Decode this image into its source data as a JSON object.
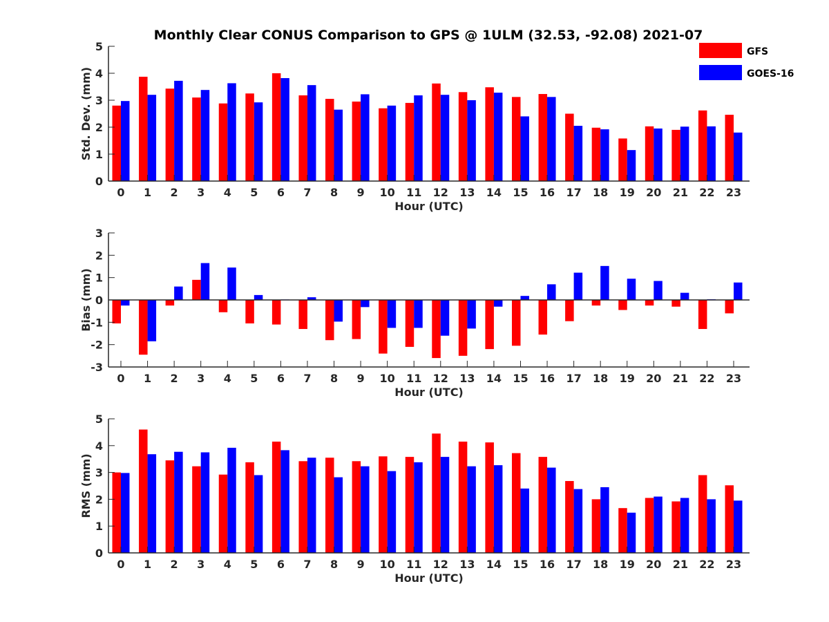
{
  "title": "Monthly Clear CONUS Comparison to GPS @ 1ULM (32.53, -92.08) 2021-07",
  "legend": [
    {
      "label": "GFS",
      "color": "#ff0000"
    },
    {
      "label": "GOES-16",
      "color": "#0000ff"
    }
  ],
  "chart_data": [
    {
      "type": "bar",
      "xlabel": "Hour (UTC)",
      "ylabel": "Std. Dev. (mm)",
      "ylim": [
        0,
        5
      ],
      "yticks": [
        0,
        1,
        2,
        3,
        4,
        5
      ],
      "categories": [
        "0",
        "1",
        "2",
        "3",
        "4",
        "5",
        "6",
        "7",
        "8",
        "9",
        "10",
        "11",
        "12",
        "13",
        "14",
        "15",
        "16",
        "17",
        "18",
        "19",
        "20",
        "21",
        "22",
        "23"
      ],
      "series": [
        {
          "name": "GFS",
          "color": "#ff0000",
          "values": [
            2.8,
            3.87,
            3.43,
            3.1,
            2.88,
            3.25,
            4.0,
            3.18,
            3.05,
            2.95,
            2.7,
            2.9,
            3.62,
            3.3,
            3.48,
            3.12,
            3.23,
            2.5,
            1.98,
            1.58,
            2.03,
            1.9,
            2.62,
            2.46
          ]
        },
        {
          "name": "GOES-16",
          "color": "#0000ff",
          "values": [
            2.97,
            3.2,
            3.72,
            3.38,
            3.63,
            2.92,
            3.82,
            3.56,
            2.65,
            3.22,
            2.8,
            3.18,
            3.2,
            3.0,
            3.28,
            2.4,
            3.12,
            2.05,
            1.92,
            1.15,
            1.95,
            2.02,
            2.03,
            1.8
          ]
        }
      ]
    },
    {
      "type": "bar",
      "xlabel": "Hour (UTC)",
      "ylabel": "Bias (mm)",
      "ylim": [
        -3,
        3
      ],
      "yticks": [
        -3,
        -2,
        -1,
        0,
        1,
        2,
        3
      ],
      "zero_line": true,
      "categories": [
        "0",
        "1",
        "2",
        "3",
        "4",
        "5",
        "6",
        "7",
        "8",
        "9",
        "10",
        "11",
        "12",
        "13",
        "14",
        "15",
        "16",
        "17",
        "18",
        "19",
        "20",
        "21",
        "22",
        "23"
      ],
      "series": [
        {
          "name": "GFS",
          "color": "#ff0000",
          "values": [
            -1.05,
            -2.45,
            -0.25,
            0.9,
            -0.55,
            -1.05,
            -1.1,
            -1.3,
            -1.8,
            -1.75,
            -2.4,
            -2.1,
            -2.6,
            -2.5,
            -2.2,
            -2.05,
            -1.55,
            -0.95,
            -0.25,
            -0.45,
            -0.25,
            -0.3,
            -1.3,
            -0.6
          ]
        },
        {
          "name": "GOES-16",
          "color": "#0000ff",
          "values": [
            -0.25,
            -1.85,
            0.6,
            1.65,
            1.45,
            0.22,
            0.02,
            0.12,
            -0.97,
            -0.32,
            -1.25,
            -1.25,
            -1.6,
            -1.28,
            -0.3,
            0.18,
            0.7,
            1.22,
            1.52,
            0.95,
            0.85,
            0.32,
            0.03,
            0.78
          ]
        }
      ]
    },
    {
      "type": "bar",
      "xlabel": "Hour (UTC)",
      "ylabel": "RMS (mm)",
      "ylim": [
        0,
        5
      ],
      "yticks": [
        0,
        1,
        2,
        3,
        4,
        5
      ],
      "categories": [
        "0",
        "1",
        "2",
        "3",
        "4",
        "5",
        "6",
        "7",
        "8",
        "9",
        "10",
        "11",
        "12",
        "13",
        "14",
        "15",
        "16",
        "17",
        "18",
        "19",
        "20",
        "21",
        "22",
        "23"
      ],
      "series": [
        {
          "name": "GFS",
          "color": "#ff0000",
          "values": [
            3.0,
            4.6,
            3.45,
            3.23,
            2.92,
            3.38,
            4.15,
            3.42,
            3.55,
            3.42,
            3.6,
            3.58,
            4.45,
            4.15,
            4.12,
            3.72,
            3.58,
            2.68,
            2.0,
            1.67,
            2.05,
            1.92,
            2.9,
            2.52
          ]
        },
        {
          "name": "GOES-16",
          "color": "#0000ff",
          "values": [
            2.98,
            3.68,
            3.77,
            3.75,
            3.92,
            2.9,
            3.83,
            3.55,
            2.82,
            3.23,
            3.05,
            3.38,
            3.58,
            3.23,
            3.27,
            2.4,
            3.18,
            2.38,
            2.45,
            1.5,
            2.1,
            2.05,
            2.0,
            1.95
          ]
        }
      ]
    }
  ]
}
